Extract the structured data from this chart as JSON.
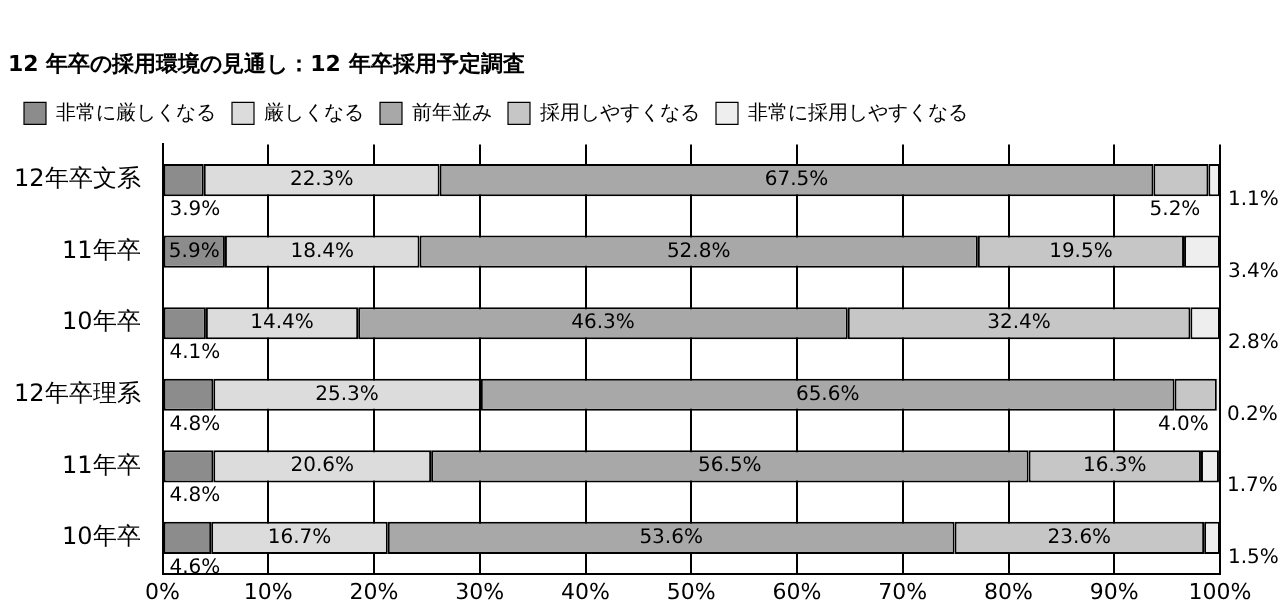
{
  "chart_data": {
    "type": "bar",
    "orientation": "horizontal",
    "stacked": true,
    "title": "12 年卒の採用環境の見通し：12 年卒採用予定調査",
    "categories": [
      "12年卒文系",
      "11年卒",
      "10年卒",
      "12年卒理系",
      "11年卒",
      "10年卒"
    ],
    "series": [
      {
        "name": "非常に厳しくなる",
        "color": "#8c8c8c",
        "values": [
          3.9,
          5.9,
          4.1,
          4.8,
          4.8,
          4.6
        ],
        "value_labels": [
          "3.9%",
          "5.9%",
          "4.1%",
          "4.8%",
          "4.8%",
          "4.6%"
        ]
      },
      {
        "name": "厳しくなる",
        "color": "#dcdcdc",
        "values": [
          22.3,
          18.4,
          14.4,
          25.3,
          20.6,
          16.7
        ],
        "value_labels": [
          "22.3%",
          "18.4%",
          "14.4%",
          "25.3%",
          "20.6%",
          "16.7%"
        ]
      },
      {
        "name": "前年並み",
        "color": "#a8a8a8",
        "values": [
          67.5,
          52.8,
          46.3,
          65.6,
          56.5,
          53.6
        ],
        "value_labels": [
          "67.5%",
          "52.8%",
          "46.3%",
          "65.6%",
          "56.5%",
          "53.6%"
        ]
      },
      {
        "name": "採用しやすくなる",
        "color": "#c6c6c6",
        "values": [
          5.2,
          19.5,
          32.4,
          4.0,
          16.3,
          23.6
        ],
        "value_labels": [
          "5.2%",
          "19.5%",
          "32.4%",
          "4.0%",
          "16.3%",
          "23.6%"
        ]
      },
      {
        "name": "非常に採用しやすくなる",
        "color": "#eeeeee",
        "values": [
          1.1,
          3.4,
          2.8,
          0.2,
          1.7,
          1.5
        ],
        "value_labels": [
          "1.1%",
          "3.4%",
          "2.8%",
          "0.2%",
          "1.7%",
          "1.5%"
        ]
      }
    ],
    "xlim": [
      0,
      100
    ],
    "xticks": [
      {
        "value": 0,
        "label": "0%"
      },
      {
        "value": 10,
        "label": "10%"
      },
      {
        "value": 20,
        "label": "20%"
      },
      {
        "value": 30,
        "label": "30%"
      },
      {
        "value": 40,
        "label": "40%"
      },
      {
        "value": 50,
        "label": "50%"
      },
      {
        "value": 60,
        "label": "60%"
      },
      {
        "value": 70,
        "label": "70%"
      },
      {
        "value": 80,
        "label": "80%"
      },
      {
        "value": 90,
        "label": "90%"
      },
      {
        "value": 100,
        "label": "100%"
      }
    ],
    "grid": "x",
    "legend": "top"
  }
}
